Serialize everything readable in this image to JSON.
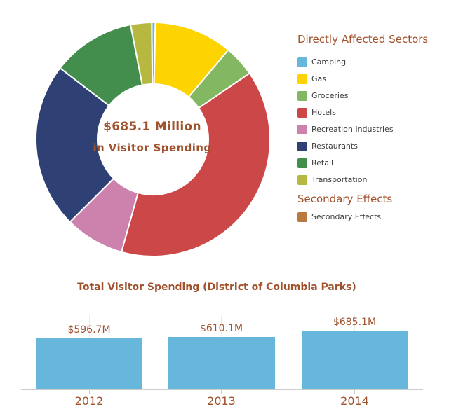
{
  "palette": {
    "text_brown": "#A0522D",
    "legend_text": "#3B3B3B",
    "axis_gray": "#CDCDCD",
    "grid_gray": "#ECECEC",
    "bar_blue": "#67B7DC",
    "slice_border": "#FFFFFF"
  },
  "donut": {
    "center_label_line1": "$685.1 Million",
    "center_label_line2": "in Visitor Spending"
  },
  "legend": {
    "primary_header": "Directly Affected Sectors",
    "secondary_header": "Secondary Effects",
    "primary_items": [
      {
        "label": "Camping",
        "color": "#67B7DC"
      },
      {
        "label": "Gas",
        "color": "#FDD400"
      },
      {
        "label": "Groceries",
        "color": "#84B761"
      },
      {
        "label": "Hotels",
        "color": "#CC4748"
      },
      {
        "label": "Recreation Industries",
        "color": "#CD82AD"
      },
      {
        "label": "Restaurants",
        "color": "#2F4074"
      },
      {
        "label": "Retail",
        "color": "#448E4D"
      },
      {
        "label": "Transportation",
        "color": "#B7B83F"
      }
    ],
    "secondary_items": [
      {
        "label": "Secondary Effects",
        "color": "#B9783F"
      }
    ]
  },
  "bar_chart": {
    "title": "Total Visitor Spending (District of Columbia Parks)"
  },
  "chart_data": [
    {
      "type": "pie",
      "donut": true,
      "labels": [
        "Camping",
        "Gas",
        "Groceries",
        "Hotels",
        "Recreation Industries",
        "Restaurants",
        "Retail",
        "Transportation"
      ],
      "values": [
        0.5,
        10.8,
        4.3,
        38.9,
        8.2,
        22.9,
        11.5,
        2.9
      ],
      "values_note": "percent share of ring, estimated from arc angles; no numeric slice labels are shown in the image",
      "colors": [
        "#67B7DC",
        "#FDD400",
        "#84B761",
        "#CC4748",
        "#CD82AD",
        "#2F4074",
        "#448E4D",
        "#B7B83F"
      ],
      "center_text": [
        "$685.1 Million",
        "in Visitor Spending"
      ],
      "legend_position": "right",
      "legend_group_headers": [
        "Directly Affected Sectors",
        "Secondary Effects"
      ],
      "start_angle_deg": -0.6
    },
    {
      "type": "bar",
      "title": "Total Visitor Spending (District of Columbia Parks)",
      "categories": [
        "2012",
        "2013",
        "2014"
      ],
      "values": [
        596.7,
        610.1,
        685.1
      ],
      "data_labels": [
        "$596.7M",
        "$610.1M",
        "$685.1M"
      ],
      "xlabel": "",
      "ylabel": "",
      "ymin": 0,
      "bar_color": "#67B7DC",
      "grid": "faint vertical category lines, no y-axis labels",
      "legend": false
    }
  ]
}
